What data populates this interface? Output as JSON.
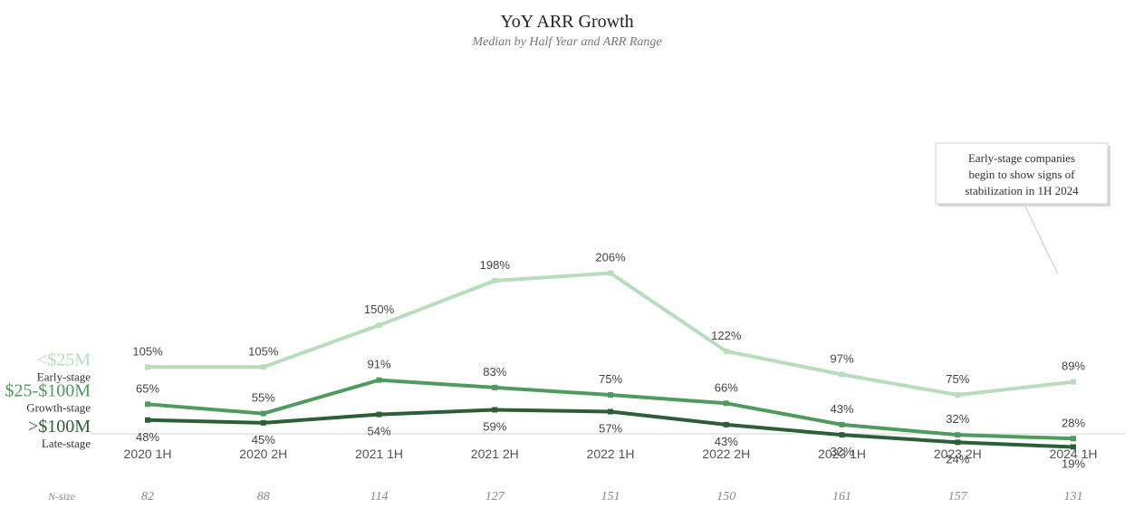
{
  "chart_data": {
    "type": "line",
    "title": "YoY ARR Growth",
    "subtitle": "Median by Half Year and ARR Range",
    "categories": [
      "2020 1H",
      "2020 2H",
      "2021 1H",
      "2021 2H",
      "2022 1H",
      "2022 2H",
      "2023 1H",
      "2023 2H",
      "2024 1H"
    ],
    "series": [
      {
        "name": "<$25M",
        "sublabel": "Early-stage",
        "color": "#b7ddbc",
        "values": [
          105,
          105,
          150,
          198,
          206,
          122,
          97,
          75,
          89
        ],
        "labels": [
          "105%",
          "105%",
          "150%",
          "198%",
          "206%",
          "122%",
          "97%",
          "75%",
          "89%"
        ],
        "label_position": "above"
      },
      {
        "name": "$25-$100M",
        "sublabel": "Growth-stage",
        "color": "#4f9a5d",
        "values": [
          65,
          55,
          91,
          83,
          75,
          66,
          43,
          32,
          28
        ],
        "labels": [
          "65%",
          "55%",
          "91%",
          "83%",
          "75%",
          "66%",
          "43%",
          "32%",
          "28%"
        ],
        "label_position": "above"
      },
      {
        "name": ">$100M",
        "sublabel": "Late-stage",
        "color": "#2c5e37",
        "values": [
          48,
          45,
          54,
          59,
          57,
          43,
          32,
          24,
          19
        ],
        "labels": [
          "48%",
          "45%",
          "54%",
          "59%",
          "57%",
          "43%",
          "32%",
          "24%",
          "19%"
        ],
        "label_position": "below"
      }
    ],
    "nsize_label": "N-size",
    "nsize": [
      "82",
      "88",
      "114",
      "127",
      "151",
      "150",
      "161",
      "157",
      "131"
    ],
    "annotation": {
      "lines": [
        "Early-stage companies",
        "begin to show signs of",
        "stabilization in 1H 2024"
      ],
      "target_category": "2024 1H",
      "target_series": "<$25M"
    },
    "ylim": [
      0,
      230
    ],
    "grid": false,
    "legend": "left, inline labels"
  }
}
